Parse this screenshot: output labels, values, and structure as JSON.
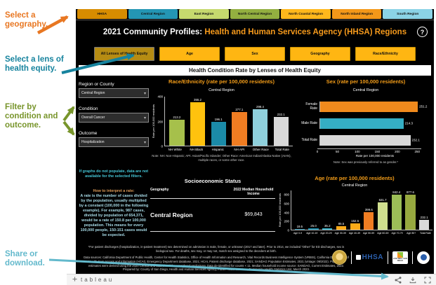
{
  "annotations": {
    "geography": "Select a geography.",
    "lens": "Select a lens of health equity.",
    "filter": "Filter by condition and outcome.",
    "share": "Share or download."
  },
  "region_tabs": [
    {
      "label": "HHSA",
      "color": "#D78C00"
    },
    {
      "label": "Central Region",
      "color": "#2496B4"
    },
    {
      "label": "East Region",
      "color": "#C6D96E"
    },
    {
      "label": "North Central Region",
      "color": "#93AF40"
    },
    {
      "label": "North Coastal Region",
      "color": "#FFB81C"
    },
    {
      "label": "North Inland Region",
      "color": "#F49819"
    },
    {
      "label": "South Region",
      "color": "#8BD3E6"
    }
  ],
  "header": {
    "title_prefix": "2021 Community Profiles:",
    "title_highlight": " Health and Human Services Agency (HHSA) Regions",
    "help": "?"
  },
  "lens_buttons": [
    {
      "label": "All Lenses of Health Equity",
      "selected": true
    },
    {
      "label": "Age",
      "selected": false
    },
    {
      "label": "Sex",
      "selected": false
    },
    {
      "label": "Geography",
      "selected": false
    },
    {
      "label": "Race/Ethnicity",
      "selected": false
    }
  ],
  "section_title": "Health Condition Rate by Lenses of Health Equity",
  "filters": {
    "region_label": "Region or County",
    "region_value": "Central Region",
    "condition_label": "Condition",
    "condition_value": "Overall Cancer",
    "outcome_label": "Outcome",
    "outcome_value": "Hospitalization",
    "caret": "▾",
    "empty_note": "If graphs do not populate, data are not available for the selected filters.",
    "rate_title": "How to interpret a rate:",
    "rate_body": "A rate is the number of cases divided by the population, usually multiplied by a constant (100,000 in the following example). For example, 987 cases, divided by population of 654,371, would be a rate of 150.8 per 100,000 population. This means for every 100,000 people, 150-151 cases would be expected."
  },
  "chart_data": [
    {
      "type": "bar",
      "title": "Race/Ethnicity (rate per 100,000 residents)",
      "subtitle": "Central Region",
      "ylabel": "Rate per 100,000 residents",
      "ylim": [
        0,
        400
      ],
      "yticks": [
        0,
        200,
        400
      ],
      "categories": [
        "NH White",
        "NH Black",
        "Hispanic",
        "NH API",
        "Other Race",
        "Total Rate"
      ],
      "values": [
        213.2,
        355.2,
        196.1,
        277.1,
        298.4,
        232.1
      ],
      "colors": [
        "#A6C04B",
        "#FFC20E",
        "#1B8BA8",
        "#F07D22",
        "#8FD0DC",
        "#D9D9D9"
      ],
      "note": "Note: NH: Non-Hispanic; API: Asian/Pacific Islander; Other Race: American Indian/Alaska Native (AIAN), multiple races, or some other race."
    },
    {
      "type": "hbar",
      "title": "Sex (rate per 100,000 residents)",
      "subtitle": "Central Region",
      "xlabel": "Rate per 100,000 residents",
      "xlim": [
        0,
        260
      ],
      "xticks": [
        0,
        50,
        100,
        150,
        200,
        250
      ],
      "categories": [
        "Female Rate",
        "Male Rate",
        "Total Rate"
      ],
      "values": [
        251.2,
        214.3,
        232.1
      ],
      "colors": [
        "#F08A1D",
        "#35AEC4",
        "#D9D9D9"
      ],
      "note": "Note: Sex was previously referred to as gender.*"
    },
    {
      "type": "table",
      "title": "Socioeconomic Status",
      "columns": [
        "Geography",
        "2022 Median Household Income"
      ],
      "rows": [
        [
          "Central Region",
          "$69,843"
        ]
      ]
    },
    {
      "type": "bar",
      "title": "Age (rate per 100,000 residents)",
      "subtitle": "Central Region",
      "ylabel": "Rate per 100,000 residents",
      "ylim": [
        0,
        900
      ],
      "yticks": [
        0,
        200,
        400,
        600,
        800
      ],
      "categories": [
        "Age 0-9",
        "Age 10-19",
        "Age 20-29",
        "Age 30-39",
        "Age 40-49",
        "Age 50-59",
        "Age 60-69",
        "Age 70-79",
        "Age 80+",
        "Total Rate"
      ],
      "values": [
        19.5,
        25.0,
        35.2,
        85.5,
        152.5,
        399.6,
        631.7,
        842.4,
        877.6,
        232.1
      ],
      "colors": [
        "#1B8BA8",
        "#1B8BA8",
        "#35AEC4",
        "#FBAB18",
        "#FBAB18",
        "#F07D22",
        "#CFDE8E",
        "#9CBE57",
        "#97A93F",
        "#D9D9D9"
      ],
      "note": ""
    }
  ],
  "footnotes": {
    "line1": "*For patient discharges (hospitalization, in-patient treatment) sex determined on admission is male, female, or unknown (2017 and later). Prior to 2014, we included \"Other\" for ED discharges, sex is biological sex. For deaths, sex may, or may not, match sex assigned to the decedent at birth.",
    "line2": "Data sources: California Department of Public Health, Center for Health Statistics, Office of Health Information and Research, Vital Records Business Intelligence System (VRBIS), California Department of Health Care Access and Information (HCAI), Emergency Department database, 2021; HCAI, Patient discharge database, 2021; SANDAG Population Estimates, 2021 (vintage: 09/2022). Population estimates were derived using the 2020 Census and data should be considered preliminary. Data de-identified for counts < 11. Median household income source: SANDAG, Current Estimates, 2022. Prepared by: County of San Diego, Health and Human Services Agency, Public Health Services, Community Health Statistics Unit, March 2023."
  },
  "logos": {
    "hhsa": "HHSA",
    "livewell": "LIVE WELL SAN DIEGO"
  },
  "toolbar": {
    "brand": "tableau"
  }
}
